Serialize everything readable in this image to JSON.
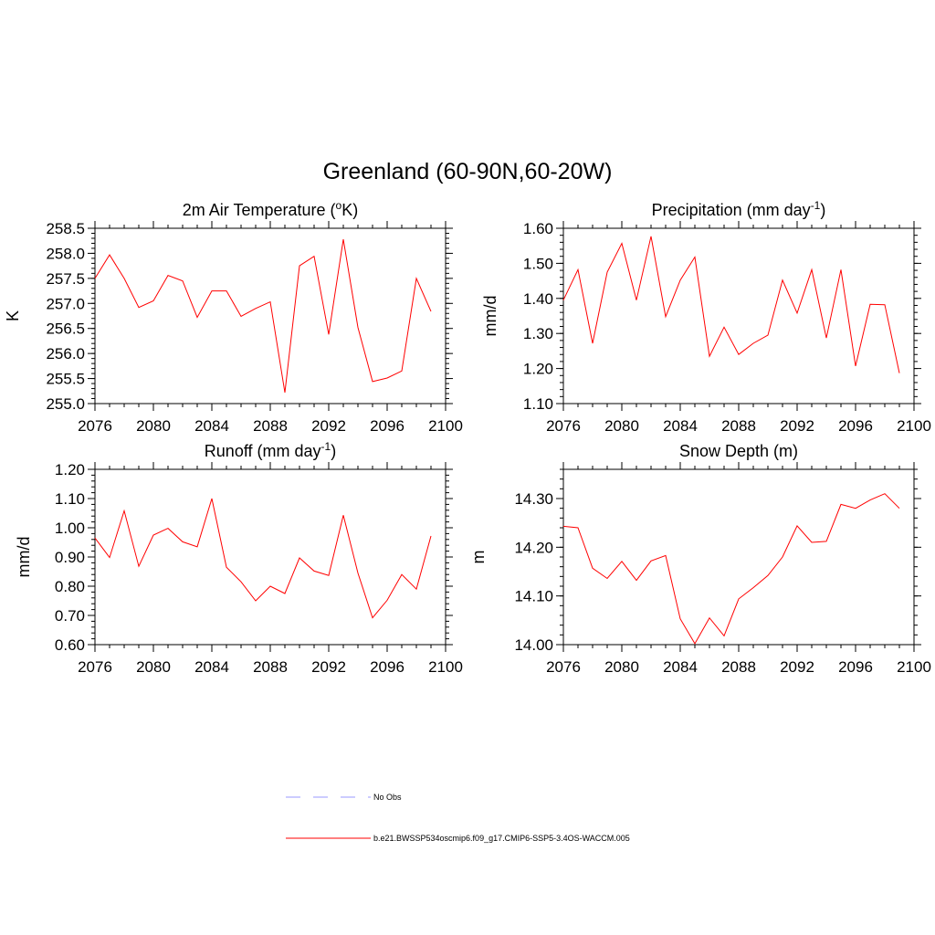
{
  "title": "Greenland (60-90N,60-20W)",
  "colors": {
    "model": "#ff0000",
    "obs": "#9999ff"
  },
  "legend": {
    "entries": [
      {
        "label": "No Obs",
        "style": "dashed",
        "color": "#9999ff"
      },
      {
        "label": "b.e21.BWSSP534oscmip6.f09_g17.CMIP6-SSP5-3.4OS-WACCM.005",
        "style": "solid",
        "color": "#ff0000"
      }
    ]
  },
  "chart_data": [
    {
      "type": "line",
      "title": "2m Air Temperature (",
      "title_sup": "o",
      "title_suffix": "K)",
      "ylabel": "K",
      "xlim": [
        2076,
        2100
      ],
      "x_ticks": [
        "2076",
        "2080",
        "2084",
        "2088",
        "2092",
        "2096",
        "2100"
      ],
      "ylim": [
        255.0,
        258.5
      ],
      "y_ticks": [
        "255.0",
        "255.5",
        "256.0",
        "256.5",
        "257.0",
        "257.5",
        "258.0",
        "258.5"
      ],
      "x": [
        2076,
        2077,
        2078,
        2079,
        2080,
        2081,
        2082,
        2083,
        2084,
        2085,
        2086,
        2087,
        2088,
        2089,
        2090,
        2091,
        2092,
        2093,
        2094,
        2095,
        2096,
        2097,
        2098,
        2099
      ],
      "values": [
        257.5,
        257.97,
        257.5,
        256.92,
        257.05,
        257.56,
        257.45,
        256.72,
        257.25,
        257.25,
        256.74,
        256.9,
        257.03,
        255.22,
        257.75,
        257.94,
        256.38,
        258.28,
        256.52,
        255.44,
        255.51,
        255.65,
        257.5,
        256.84
      ],
      "series_color": "#ff0000"
    },
    {
      "type": "line",
      "title": "Precipitation (mm day",
      "title_sup": "-1",
      "title_suffix": ")",
      "ylabel": "mm/d",
      "xlim": [
        2076,
        2100
      ],
      "x_ticks": [
        "2076",
        "2080",
        "2084",
        "2088",
        "2092",
        "2096",
        "2100"
      ],
      "ylim": [
        1.1,
        1.6
      ],
      "y_ticks": [
        "1.10",
        "1.20",
        "1.30",
        "1.40",
        "1.50",
        "1.60"
      ],
      "x": [
        2076,
        2077,
        2078,
        2079,
        2080,
        2081,
        2082,
        2083,
        2084,
        2085,
        2086,
        2087,
        2088,
        2089,
        2090,
        2091,
        2092,
        2093,
        2094,
        2095,
        2096,
        2097,
        2098,
        2099
      ],
      "values": [
        1.395,
        1.482,
        1.272,
        1.475,
        1.557,
        1.395,
        1.577,
        1.348,
        1.452,
        1.518,
        1.235,
        1.318,
        1.24,
        1.272,
        1.295,
        1.452,
        1.358,
        1.482,
        1.287,
        1.482,
        1.207,
        1.383,
        1.382,
        1.187
      ],
      "series_color": "#ff0000"
    },
    {
      "type": "line",
      "title": "Runoff (mm day",
      "title_sup": "-1",
      "title_suffix": ")",
      "ylabel": "mm/d",
      "xlim": [
        2076,
        2100
      ],
      "x_ticks": [
        "2076",
        "2080",
        "2084",
        "2088",
        "2092",
        "2096",
        "2100"
      ],
      "ylim": [
        0.6,
        1.2
      ],
      "y_ticks": [
        "0.60",
        "0.70",
        "0.80",
        "0.90",
        "1.00",
        "1.10",
        "1.20"
      ],
      "x": [
        2076,
        2077,
        2078,
        2079,
        2080,
        2081,
        2082,
        2083,
        2084,
        2085,
        2086,
        2087,
        2088,
        2089,
        2090,
        2091,
        2092,
        2093,
        2094,
        2095,
        2096,
        2097,
        2098,
        2099
      ],
      "values": [
        0.965,
        0.898,
        1.058,
        0.868,
        0.975,
        0.998,
        0.952,
        0.935,
        1.1,
        0.865,
        0.815,
        0.75,
        0.8,
        0.775,
        0.897,
        0.852,
        0.837,
        1.043,
        0.845,
        0.692,
        0.752,
        0.84,
        0.79,
        0.972
      ],
      "series_color": "#ff0000"
    },
    {
      "type": "line",
      "title": "Snow Depth (m)",
      "title_sup": "",
      "title_suffix": "",
      "ylabel": "m",
      "xlim": [
        2076,
        2100
      ],
      "x_ticks": [
        "2076",
        "2080",
        "2084",
        "2088",
        "2092",
        "2096",
        "2100"
      ],
      "ylim": [
        14.0,
        14.36
      ],
      "y_ticks": [
        "14.00",
        "14.10",
        "14.20",
        "14.30"
      ],
      "x": [
        2076,
        2077,
        2078,
        2079,
        2080,
        2081,
        2082,
        2083,
        2084,
        2085,
        2086,
        2087,
        2088,
        2089,
        2090,
        2091,
        2092,
        2093,
        2094,
        2095,
        2096,
        2097,
        2098,
        2099
      ],
      "values": [
        14.243,
        14.24,
        14.157,
        14.136,
        14.171,
        14.132,
        14.172,
        14.183,
        14.053,
        14.002,
        14.055,
        14.018,
        14.094,
        14.117,
        14.142,
        14.18,
        14.244,
        14.21,
        14.212,
        14.288,
        14.28,
        14.297,
        14.31,
        14.28
      ],
      "series_color": "#ff0000"
    }
  ]
}
